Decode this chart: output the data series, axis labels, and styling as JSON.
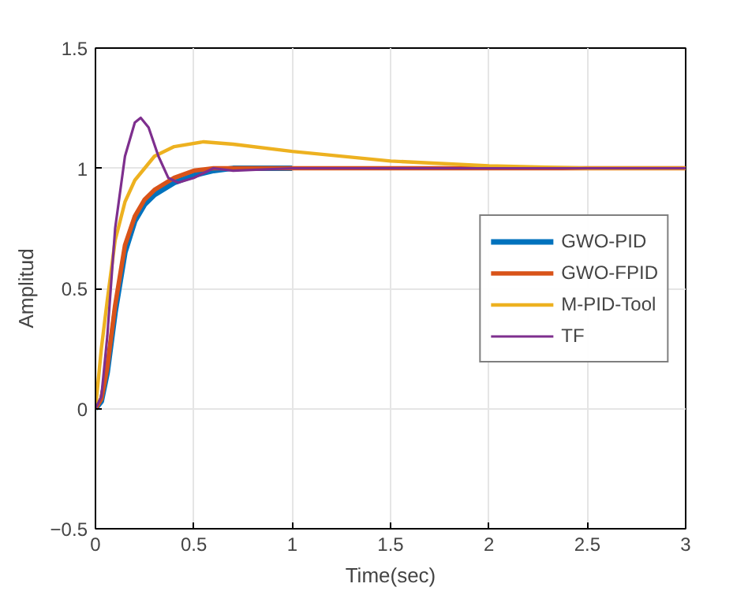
{
  "chart_data": {
    "type": "line",
    "xlabel": "Time(sec)",
    "ylabel": "Amplitud",
    "xlim": [
      0,
      3
    ],
    "ylim": [
      -0.5,
      1.5
    ],
    "xticks": [
      0,
      0.5,
      1,
      1.5,
      2,
      2.5,
      3
    ],
    "yticks": [
      -0.5,
      0,
      0.5,
      1,
      1.5
    ],
    "grid": true,
    "legend": "right",
    "series": [
      {
        "name": "GWO-PID",
        "color": "#0072bd",
        "x": [
          0,
          0.03,
          0.06,
          0.1,
          0.15,
          0.2,
          0.25,
          0.3,
          0.4,
          0.5,
          0.6,
          0.7,
          1
        ],
        "values": [
          0,
          0.03,
          0.15,
          0.4,
          0.65,
          0.78,
          0.85,
          0.89,
          0.94,
          0.97,
          0.99,
          1,
          1
        ]
      },
      {
        "name": "GWO-FPID",
        "color": "#d95319",
        "x": [
          0,
          0.03,
          0.06,
          0.1,
          0.15,
          0.2,
          0.25,
          0.3,
          0.4,
          0.5,
          0.6,
          0.7,
          1,
          1.5,
          2,
          3
        ],
        "values": [
          0,
          0.04,
          0.17,
          0.43,
          0.68,
          0.8,
          0.87,
          0.91,
          0.96,
          0.99,
          1,
          1,
          1,
          1,
          1,
          1
        ]
      },
      {
        "name": "M-PID-Tool",
        "color": "#edb120",
        "x": [
          0,
          0.03,
          0.06,
          0.1,
          0.15,
          0.2,
          0.3,
          0.4,
          0.55,
          0.7,
          1,
          1.5,
          2,
          2.5,
          3
        ],
        "values": [
          0,
          0.25,
          0.45,
          0.7,
          0.86,
          0.95,
          1.05,
          1.09,
          1.11,
          1.1,
          1.07,
          1.03,
          1.01,
          1,
          1
        ]
      },
      {
        "name": "TF",
        "color": "#7e2f8e",
        "x": [
          0,
          0.03,
          0.06,
          0.1,
          0.15,
          0.2,
          0.23,
          0.27,
          0.32,
          0.37,
          0.42,
          0.5,
          0.6,
          0.7,
          1,
          3
        ],
        "values": [
          0,
          0.05,
          0.3,
          0.75,
          1.05,
          1.19,
          1.21,
          1.17,
          1.05,
          0.96,
          0.94,
          0.96,
          1,
          0.99,
          1,
          1
        ]
      }
    ]
  }
}
